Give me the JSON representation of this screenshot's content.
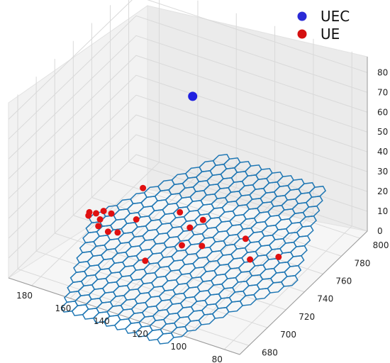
{
  "chart_data": {
    "type": "scatter",
    "dimensions": "3d",
    "grid": true,
    "legend_placement": "top-right",
    "x_ticks": [
      "80",
      "100",
      "120",
      "140",
      "160",
      "180"
    ],
    "y_ticks": [
      "680",
      "700",
      "720",
      "740",
      "760",
      "780",
      "800"
    ],
    "z_ticks": [
      "0",
      "10",
      "20",
      "30",
      "40",
      "50",
      "60",
      "70",
      "80"
    ],
    "xlim": [
      72,
      192
    ],
    "ylim": [
      670,
      808
    ],
    "zlim": [
      0,
      88
    ],
    "series": [
      {
        "name": "UEC",
        "color": "#2020e0",
        "points": [
          {
            "x": 130,
            "y": 740,
            "z": 80
          }
        ]
      },
      {
        "name": "UE",
        "color": "#e01010",
        "points": [
          {
            "x": 96,
            "y": 762,
            "z": 0
          },
          {
            "x": 116,
            "y": 768,
            "z": 0
          },
          {
            "x": 106,
            "y": 752,
            "z": 0
          },
          {
            "x": 140,
            "y": 772,
            "z": 0
          },
          {
            "x": 142,
            "y": 762,
            "z": 0
          },
          {
            "x": 152,
            "y": 772,
            "z": 0
          },
          {
            "x": 130,
            "y": 750,
            "z": 0
          },
          {
            "x": 176,
            "y": 782,
            "z": 0
          },
          {
            "x": 138,
            "y": 745,
            "z": 0
          },
          {
            "x": 166,
            "y": 754,
            "z": 0
          },
          {
            "x": 178,
            "y": 752,
            "z": 0
          },
          {
            "x": 184,
            "y": 748,
            "z": 0
          },
          {
            "x": 182,
            "y": 752,
            "z": 0
          },
          {
            "x": 187,
            "y": 747,
            "z": 0
          },
          {
            "x": 178,
            "y": 738,
            "z": 0
          },
          {
            "x": 180,
            "y": 744,
            "z": 0
          },
          {
            "x": 186,
            "y": 744,
            "z": 0
          },
          {
            "x": 168,
            "y": 738,
            "z": 0
          },
          {
            "x": 172,
            "y": 736,
            "z": 0
          },
          {
            "x": 146,
            "y": 722,
            "z": 0
          }
        ]
      }
    ]
  }
}
